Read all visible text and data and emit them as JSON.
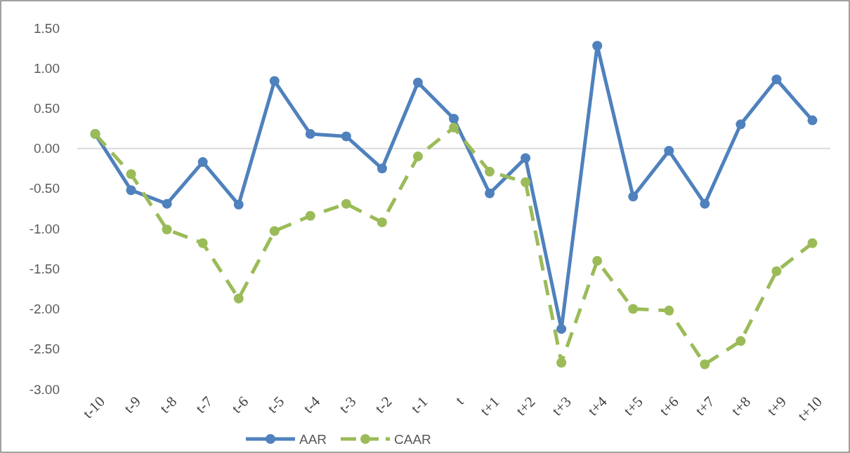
{
  "chart_data": {
    "type": "line",
    "categories": [
      "t-10",
      "t-9",
      "t-8",
      "t-7",
      "t-6",
      "t-5",
      "t-4",
      "t-3",
      "t-2",
      "t-1",
      "t",
      "t+1",
      "t+2",
      "t+3",
      "t+4",
      "t+5",
      "t+6",
      "t+7",
      "t+8",
      "t+9",
      "t+10"
    ],
    "series": [
      {
        "name": "AAR",
        "color": "#4f81bd",
        "line_style": "solid",
        "values": [
          0.18,
          -0.52,
          -0.69,
          -0.17,
          -0.7,
          0.84,
          0.18,
          0.15,
          -0.25,
          0.82,
          0.37,
          -0.56,
          -0.12,
          -2.25,
          1.28,
          -0.6,
          -0.03,
          -0.69,
          0.3,
          0.86,
          0.35
        ]
      },
      {
        "name": "CAAR",
        "color": "#9bbb59",
        "line_style": "dashed",
        "values": [
          0.18,
          -0.32,
          -1.01,
          -1.18,
          -1.87,
          -1.03,
          -0.84,
          -0.69,
          -0.92,
          -0.1,
          0.26,
          -0.29,
          -0.42,
          -2.67,
          -1.4,
          -2.0,
          -2.02,
          -2.69,
          -2.4,
          -1.53,
          -1.18
        ]
      }
    ],
    "ylim": [
      -3,
      1.5
    ],
    "yticks": [
      {
        "value": -3,
        "label": "-3.00"
      },
      {
        "value": -2.5,
        "label": "-2.50"
      },
      {
        "value": -2,
        "label": "-2.00"
      },
      {
        "value": -1.5,
        "label": "-1.50"
      },
      {
        "value": -1,
        "label": "-1.00"
      },
      {
        "value": -0.5,
        "label": "-0.50"
      },
      {
        "value": 0,
        "label": "0.00"
      },
      {
        "value": 0.5,
        "label": "0.50"
      },
      {
        "value": 1,
        "label": "1.00"
      },
      {
        "value": 1.5,
        "label": "1.50"
      }
    ],
    "marker": "circle",
    "legend": "bottom"
  }
}
